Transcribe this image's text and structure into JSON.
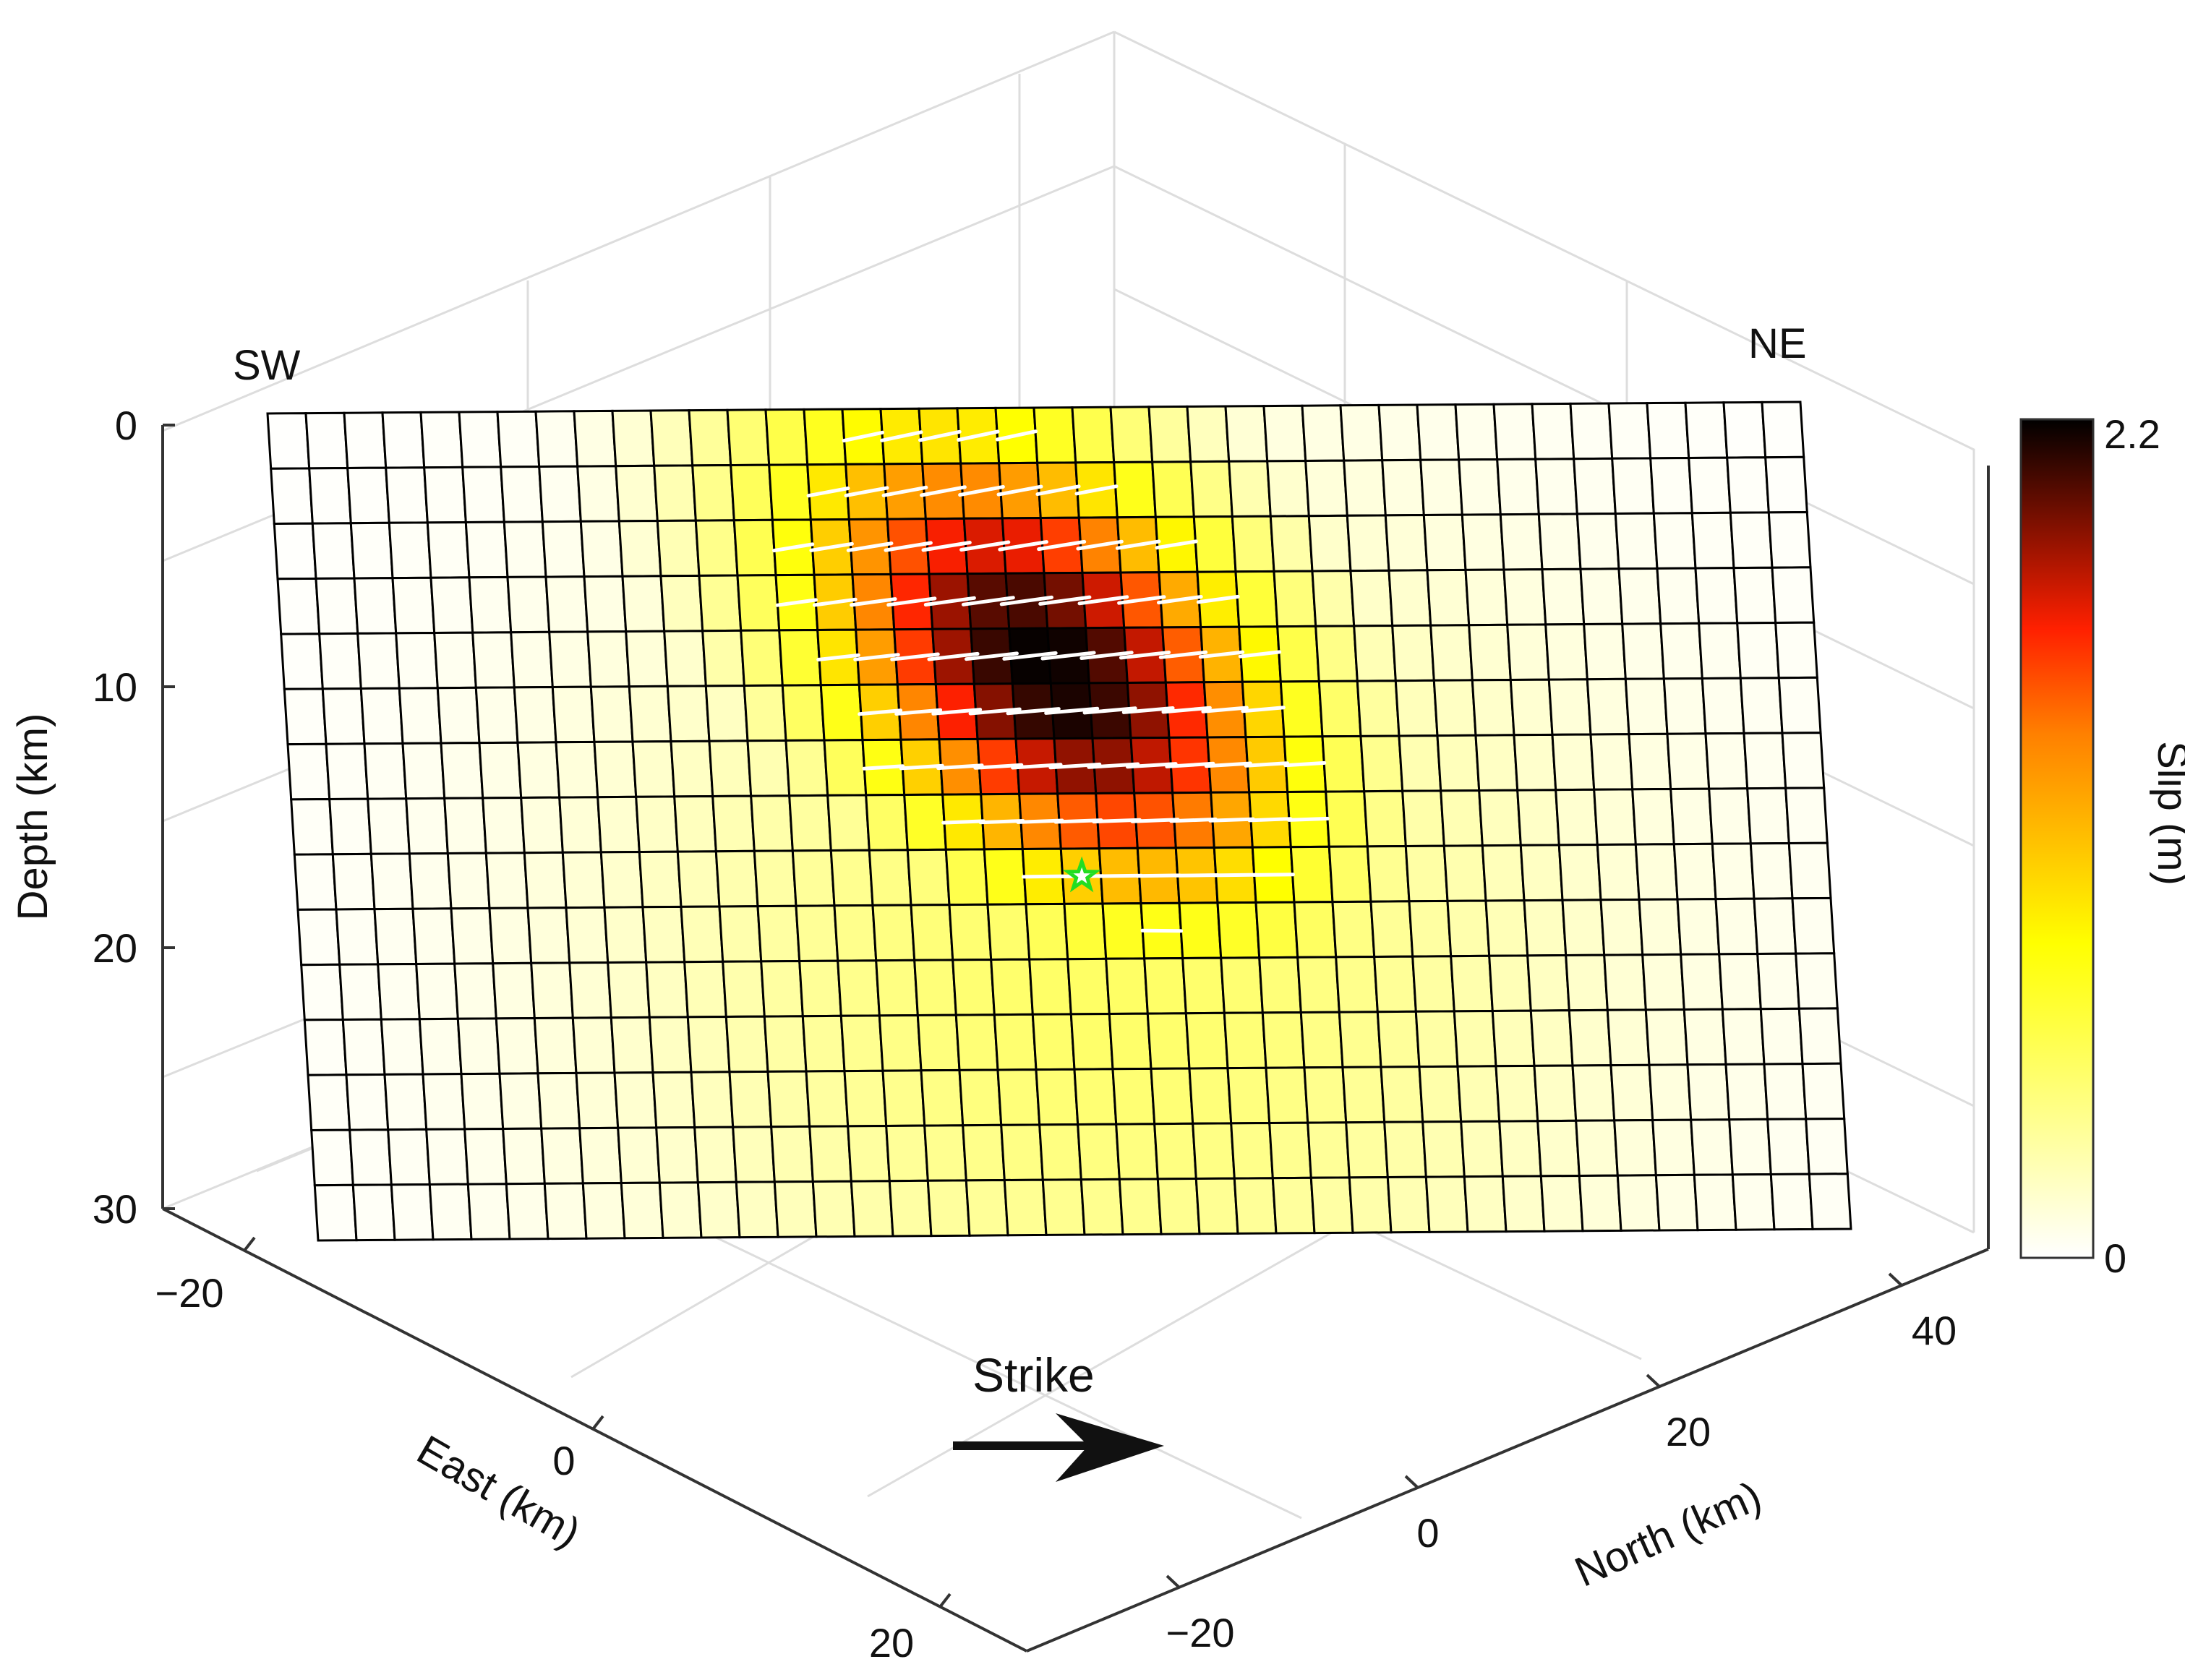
{
  "chart_data": {
    "type": "heatmap",
    "title": "",
    "fault_grid": {
      "n_strike": 40,
      "n_dip": 15,
      "depth_range_km": [
        0,
        30
      ]
    },
    "axes": {
      "depth": {
        "label": "Depth (km)",
        "ticks": [
          "0",
          "10",
          "20",
          "30"
        ],
        "range": [
          0,
          30
        ]
      },
      "east": {
        "label": "East (km)",
        "ticks": [
          "−20",
          "0",
          "20"
        ]
      },
      "north": {
        "label": "North (km)",
        "ticks": [
          "−20",
          "0",
          "20",
          "40"
        ]
      }
    },
    "direction_labels": {
      "left": "SW",
      "right": "NE"
    },
    "strike_label": "Strike",
    "colorbar": {
      "label": "Slip (m)",
      "min": 0,
      "max": 2.2,
      "min_label": "0",
      "max_label": "2.2",
      "colormap": "hot-reversed"
    },
    "slip_patch": {
      "peak_slip_m": 2.2,
      "peak_strike_index": 20,
      "peak_depth_km": 9.5
    },
    "hypocenter": {
      "depth_km": 17,
      "marker": "star-icon",
      "color": "#22dd22"
    },
    "grid_on": true,
    "colors": {
      "grid_line": "#dddddd",
      "cell_border": "#000000",
      "rake_vector": "#ffffff"
    }
  }
}
